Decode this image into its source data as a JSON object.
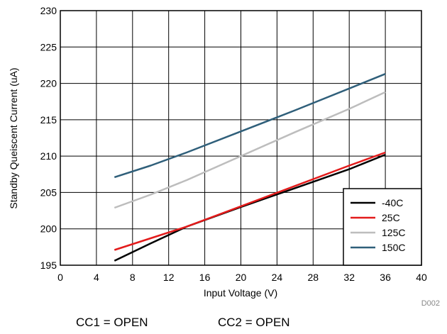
{
  "chart_data": {
    "type": "line",
    "xlabel": "Input Voltage (V)",
    "ylabel": "Standby Queiscent Current (uA)",
    "xlim": [
      0,
      40
    ],
    "ylim": [
      195,
      230
    ],
    "xticks": [
      0,
      4,
      8,
      12,
      16,
      20,
      24,
      28,
      32,
      36,
      40
    ],
    "yticks": [
      195,
      200,
      205,
      210,
      215,
      220,
      225,
      230
    ],
    "grid": true,
    "legend_position": "bottom-right",
    "series": [
      {
        "name": "-40C",
        "color": "#000000",
        "x": [
          6,
          10,
          14,
          20,
          26,
          32,
          36
        ],
        "y": [
          195.6,
          198,
          200.3,
          203,
          205.6,
          208.2,
          210.2
        ]
      },
      {
        "name": "25C",
        "color": "#e31b1b",
        "x": [
          6,
          10,
          14,
          20,
          26,
          32,
          36
        ],
        "y": [
          197.1,
          198.7,
          200.3,
          203.1,
          205.9,
          208.7,
          210.5
        ]
      },
      {
        "name": "125C",
        "color": "#bdbdbd",
        "x": [
          6,
          10,
          14,
          20,
          26,
          32,
          36
        ],
        "y": [
          202.9,
          204.7,
          206.7,
          210,
          213.3,
          216.5,
          218.8
        ]
      },
      {
        "name": "150C",
        "color": "#2f5f7a",
        "x": [
          6,
          10,
          14,
          20,
          26,
          32,
          36
        ],
        "y": [
          207.1,
          208.7,
          210.5,
          213.4,
          216.3,
          219.3,
          221.3
        ]
      }
    ]
  },
  "figure_id": "D002",
  "footnotes": {
    "cc1": "CC1 = OPEN",
    "cc2": "CC2 = OPEN"
  }
}
